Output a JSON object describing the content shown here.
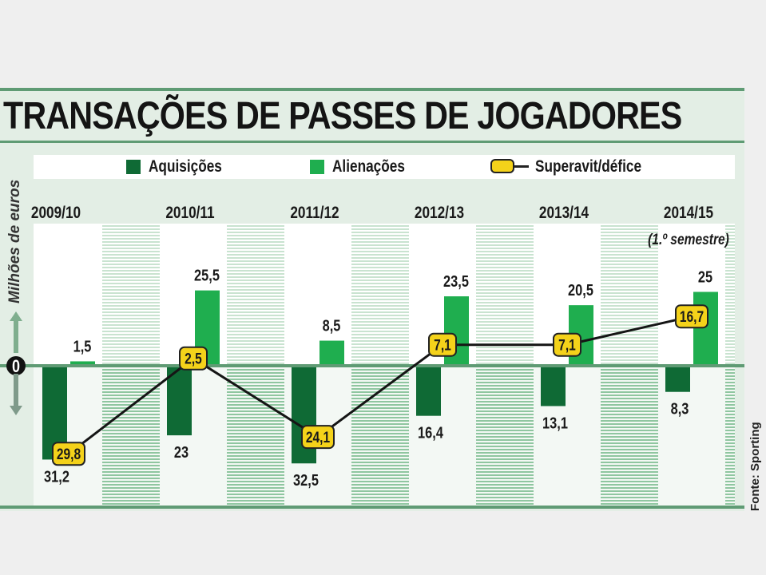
{
  "chart_data": {
    "type": "bar",
    "title": "TRANSAÇÕES DE PASSES DE JOGADORES",
    "ylabel": "Milhões de euros",
    "source": "Fonte: Sporting",
    "zero_label": "0",
    "categories": [
      "2009/10",
      "2010/11",
      "2011/12",
      "2012/13",
      "2013/14",
      "2014/15"
    ],
    "category_notes": [
      "",
      "",
      "",
      "",
      "",
      "(1.º semestre)"
    ],
    "series": [
      {
        "name": "Aquisições",
        "type": "bar",
        "color": "#0f6a35",
        "values": [
          -31.2,
          -23,
          -32.5,
          -16.4,
          -13.1,
          -8.3
        ],
        "labels": [
          "31,2",
          "23",
          "32,5",
          "16,4",
          "13,1",
          "8,3"
        ]
      },
      {
        "name": "Alienações",
        "type": "bar",
        "color": "#1fae4f",
        "values": [
          1.5,
          25.5,
          8.5,
          23.5,
          20.5,
          25
        ],
        "labels": [
          "1,5",
          "25,5",
          "8,5",
          "23,5",
          "20,5",
          "25"
        ]
      },
      {
        "name": "Superavit/défice",
        "type": "line",
        "color": "#f4d21a",
        "values": [
          -29.8,
          2.5,
          -24.1,
          7.1,
          7.1,
          16.7
        ],
        "labels": [
          "29,8",
          "2,5",
          "24,1",
          "7,1",
          "7,1",
          "16,7"
        ]
      }
    ],
    "ylim": [
      -45,
      45
    ],
    "grid": false,
    "legend": "top"
  }
}
